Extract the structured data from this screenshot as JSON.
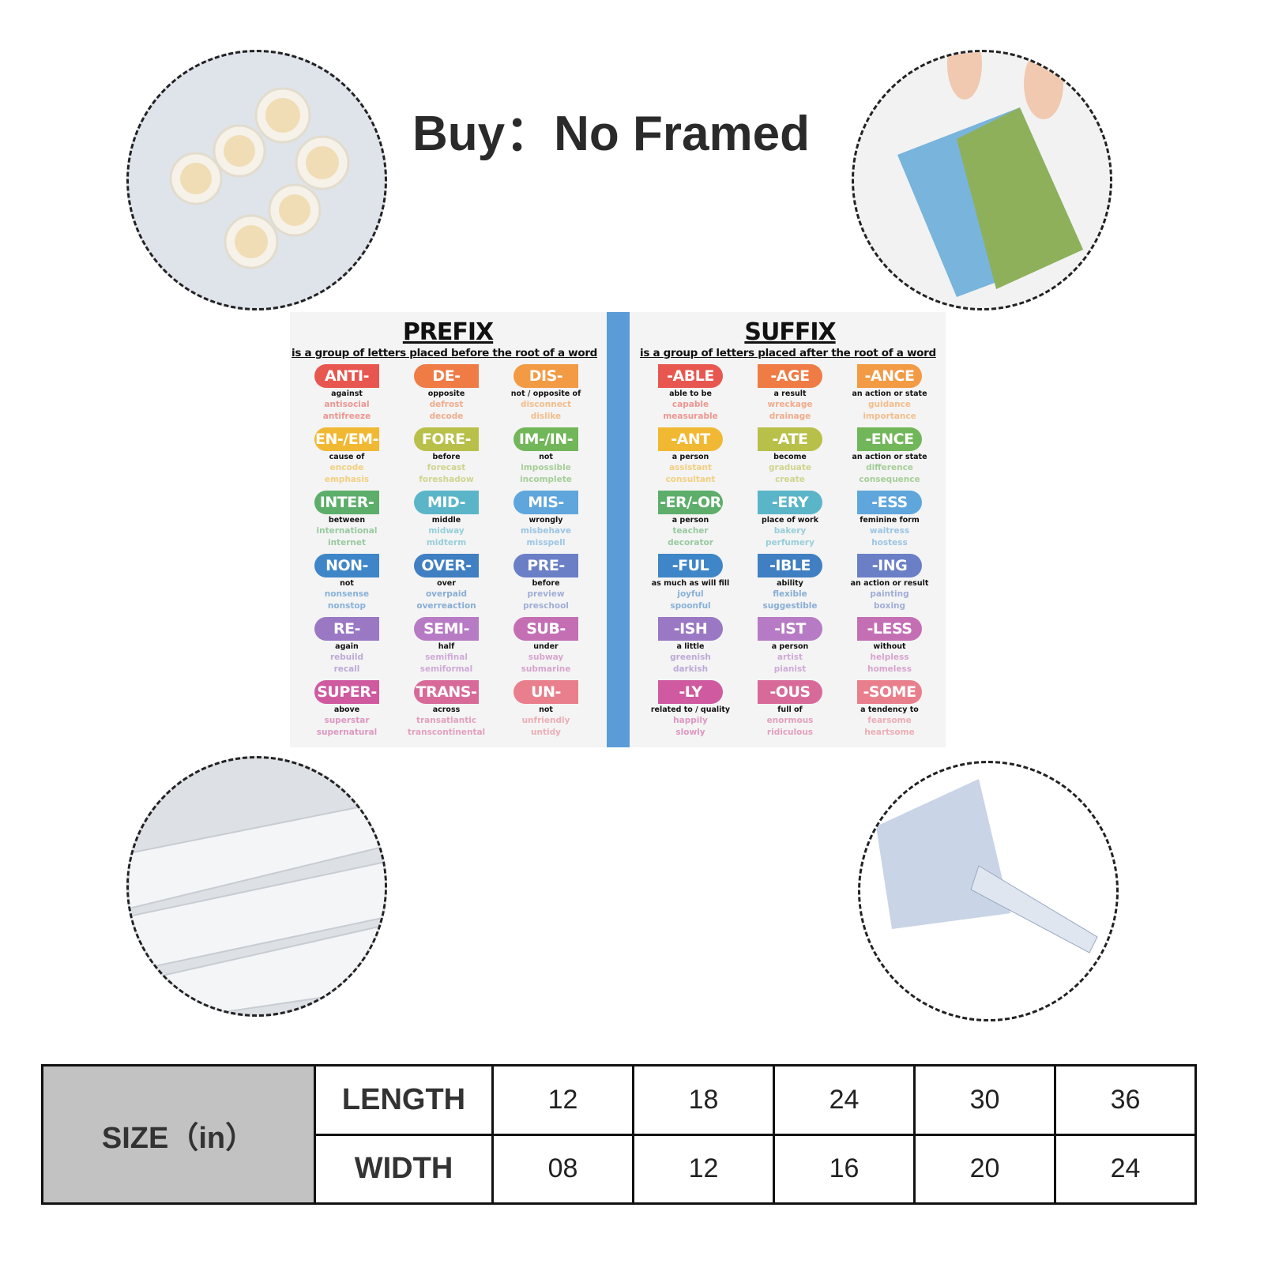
{
  "header": {
    "title": "Buy：No Framed"
  },
  "photos": [
    {
      "icon": "rolled-tubes-icon"
    },
    {
      "icon": "canvas-print-in-hands-icon"
    },
    {
      "icon": "rolled-canvas-icon"
    },
    {
      "icon": "bubble-wrap-tube-icon"
    }
  ],
  "poster": {
    "prefix": {
      "title": "PREFIX",
      "subtitle": "is a group of letters placed before the root of a word",
      "items": [
        {
          "tag": "ANTI-",
          "meaning": "against",
          "examples": [
            "antisocial",
            "antifreeze"
          ],
          "color": "#e8574f"
        },
        {
          "tag": "DE-",
          "meaning": "opposite",
          "examples": [
            "defrost",
            "decode"
          ],
          "color": "#ef7b45"
        },
        {
          "tag": "DIS-",
          "meaning": "not / opposite of",
          "examples": [
            "disconnect",
            "dislike"
          ],
          "color": "#f39a45"
        },
        {
          "tag": "EN-/EM-",
          "meaning": "cause of",
          "examples": [
            "encode",
            "emphasis"
          ],
          "color": "#f1b833"
        },
        {
          "tag": "FORE-",
          "meaning": "before",
          "examples": [
            "forecast",
            "foreshadow"
          ],
          "color": "#b8c04a"
        },
        {
          "tag": "IM-/IN-",
          "meaning": "not",
          "examples": [
            "impossible",
            "incomplete"
          ],
          "color": "#72b65a"
        },
        {
          "tag": "INTER-",
          "meaning": "between",
          "examples": [
            "international",
            "internet"
          ],
          "color": "#5cae6a"
        },
        {
          "tag": "MID-",
          "meaning": "middle",
          "examples": [
            "midway",
            "midterm"
          ],
          "color": "#5bb5c9"
        },
        {
          "tag": "MIS-",
          "meaning": "wrongly",
          "examples": [
            "misbehave",
            "misspell"
          ],
          "color": "#5fa6dc"
        },
        {
          "tag": "NON-",
          "meaning": "not",
          "examples": [
            "nonsense",
            "nonstop"
          ],
          "color": "#3f86c8"
        },
        {
          "tag": "OVER-",
          "meaning": "over",
          "examples": [
            "overpaid",
            "overreaction"
          ],
          "color": "#3f7fc2"
        },
        {
          "tag": "PRE-",
          "meaning": "before",
          "examples": [
            "preview",
            "preschool"
          ],
          "color": "#6a7fc6"
        },
        {
          "tag": "RE-",
          "meaning": "again",
          "examples": [
            "rebuild",
            "recall"
          ],
          "color": "#9a78c4"
        },
        {
          "tag": "SEMI-",
          "meaning": "half",
          "examples": [
            "semifinal",
            "semiformal"
          ],
          "color": "#b77ac4"
        },
        {
          "tag": "SUB-",
          "meaning": "under",
          "examples": [
            "subway",
            "submarine"
          ],
          "color": "#c46fb4"
        },
        {
          "tag": "SUPER-",
          "meaning": "above",
          "examples": [
            "superstar",
            "supernatural"
          ],
          "color": "#cf5aa0"
        },
        {
          "tag": "TRANS-",
          "meaning": "across",
          "examples": [
            "transatlantic",
            "transcontinental"
          ],
          "color": "#d86a9a"
        },
        {
          "tag": "UN-",
          "meaning": "not",
          "examples": [
            "unfriendly",
            "untidy"
          ],
          "color": "#e97f8d"
        }
      ]
    },
    "suffix": {
      "title": "SUFFIX",
      "subtitle": "is a group of letters placed after the root of a word",
      "items": [
        {
          "tag": "-ABLE",
          "meaning": "able to be",
          "examples": [
            "capable",
            "measurable"
          ],
          "color": "#e8574f"
        },
        {
          "tag": "-AGE",
          "meaning": "a result",
          "examples": [
            "wreckage",
            "drainage"
          ],
          "color": "#ef7b45"
        },
        {
          "tag": "-ANCE",
          "meaning": "an action or state",
          "examples": [
            "guidance",
            "importance"
          ],
          "color": "#f39a45"
        },
        {
          "tag": "-ANT",
          "meaning": "a person",
          "examples": [
            "assistant",
            "consultant"
          ],
          "color": "#f1b833"
        },
        {
          "tag": "-ATE",
          "meaning": "become",
          "examples": [
            "graduate",
            "create"
          ],
          "color": "#b8c04a"
        },
        {
          "tag": "-ENCE",
          "meaning": "an action or state",
          "examples": [
            "difference",
            "consequence"
          ],
          "color": "#72b65a"
        },
        {
          "tag": "-ER/-OR",
          "meaning": "a person",
          "examples": [
            "teacher",
            "decorator"
          ],
          "color": "#5cae6a"
        },
        {
          "tag": "-ERY",
          "meaning": "place of work",
          "examples": [
            "bakery",
            "perfumery"
          ],
          "color": "#5bb5c9"
        },
        {
          "tag": "-ESS",
          "meaning": "feminine form",
          "examples": [
            "waitress",
            "hostess"
          ],
          "color": "#5fa6dc"
        },
        {
          "tag": "-FUL",
          "meaning": "as much as will fill",
          "examples": [
            "joyful",
            "spoonful"
          ],
          "color": "#3f86c8"
        },
        {
          "tag": "-IBLE",
          "meaning": "ability",
          "examples": [
            "flexible",
            "suggestible"
          ],
          "color": "#3f7fc2"
        },
        {
          "tag": "-ING",
          "meaning": "an action or result",
          "examples": [
            "painting",
            "boxing"
          ],
          "color": "#6a7fc6"
        },
        {
          "tag": "-ISH",
          "meaning": "a little",
          "examples": [
            "greenish",
            "darkish"
          ],
          "color": "#9a78c4"
        },
        {
          "tag": "-IST",
          "meaning": "a person",
          "examples": [
            "artist",
            "pianist"
          ],
          "color": "#b77ac4"
        },
        {
          "tag": "-LESS",
          "meaning": "without",
          "examples": [
            "helpless",
            "homeless"
          ],
          "color": "#c46fb4"
        },
        {
          "tag": "-LY",
          "meaning": "related to / quality",
          "examples": [
            "happily",
            "slowly"
          ],
          "color": "#cf5aa0"
        },
        {
          "tag": "-OUS",
          "meaning": "full of",
          "examples": [
            "enormous",
            "ridiculous"
          ],
          "color": "#d86a9a"
        },
        {
          "tag": "-SOME",
          "meaning": "a tendency to",
          "examples": [
            "fearsome",
            "heartsome"
          ],
          "color": "#e97f8d"
        }
      ]
    }
  },
  "size_table": {
    "label": "SIZE（in）",
    "rows": [
      {
        "label": "LENGTH",
        "values": [
          "12",
          "18",
          "24",
          "30",
          "36"
        ]
      },
      {
        "label": "WIDTH",
        "values": [
          "08",
          "12",
          "16",
          "20",
          "24"
        ]
      }
    ]
  }
}
